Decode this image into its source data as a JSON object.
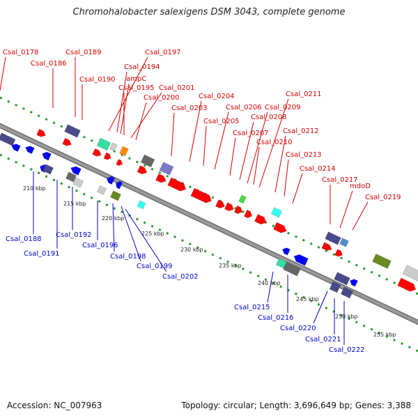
{
  "title": "Chromohalobacter salexigens DSM 3043, complete genome",
  "footer": {
    "accession": "Accession: NC_007963",
    "summary": "Topology: circular; Length: 3,696,649 bp; Genes: 3,388"
  },
  "colors": {
    "forward_label": "#d40000",
    "reverse_label": "#0000cc",
    "forward_gene": "#ff0000",
    "reverse_gene": "#0000ff",
    "backbone": "#9a9a9a",
    "dots": "#2e9a2e"
  },
  "ticks": [
    "210 kbp",
    "215 kbp",
    "220 kbp",
    "225 kbp",
    "230 kbp",
    "235 kbp",
    "240 kbp",
    "245 kbp",
    "250 kbp",
    "255 kbp"
  ],
  "forward_labels": [
    "Csal_0178",
    "Csal_0186",
    "Csal_0189",
    "Csal_0190",
    "Csal_0197",
    "Csal_0194",
    "ampC",
    "Csal_0195",
    "Csal_0201",
    "Csal_0200",
    "Csal_0204",
    "Csal_0203",
    "Csal_0206",
    "Csal_0205",
    "Csal_0209",
    "Csal_0211",
    "Csal_0208",
    "Csal_0207",
    "Csal_0212",
    "Csal_0210",
    "Csal_0213",
    "Csal_0214",
    "Csal_0217",
    "mdoD",
    "Csal_0219"
  ],
  "reverse_labels": [
    "Csal_0188",
    "Csal_0192",
    "Csal_0191",
    "Csal_0196",
    "Csal_0198",
    "Csal_0199",
    "Csal_0202",
    "Csal_0215",
    "Csal_0216",
    "Csal_0220",
    "Csal_0221",
    "Csal_0222"
  ]
}
